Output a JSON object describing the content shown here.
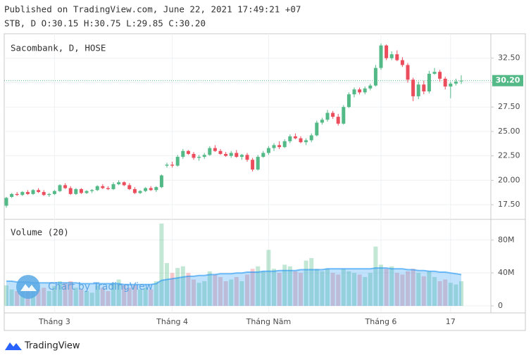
{
  "header": {
    "published": "Published on TradingView.com, June 22, 2021 17:49:21 +07",
    "ohlc_legend": "STB, D O:30.15 H:30.75 L:29.85 C:30.20"
  },
  "footer": {
    "brand": "TradingView"
  },
  "chart_data": {
    "type": "candlestick",
    "title": "Sacombank, D, HOSE",
    "watermark": "Chart by TradingView",
    "up_color": "#53b987",
    "down_color": "#eb4d5c",
    "categories": [
      null,
      null,
      null,
      null,
      null,
      null,
      null,
      null,
      null,
      "Tháng 3",
      null,
      null,
      null,
      null,
      null,
      null,
      null,
      null,
      null,
      null,
      null,
      null,
      null,
      null,
      null,
      null,
      null,
      null,
      null,
      null,
      null,
      "Tháng 4",
      null,
      null,
      null,
      null,
      null,
      null,
      null,
      null,
      null,
      null,
      null,
      null,
      null,
      null,
      null,
      null,
      null,
      "Tháng Năm",
      null,
      null,
      null,
      null,
      null,
      null,
      null,
      null,
      null,
      null,
      null,
      null,
      null,
      null,
      null,
      null,
      null,
      null,
      null,
      null,
      "Tháng 6",
      null,
      null,
      null,
      null,
      null,
      null,
      null,
      null,
      null,
      null,
      null,
      null,
      "17",
      null,
      null
    ],
    "open": [
      17.4,
      18.3,
      18.6,
      18.5,
      18.8,
      18.6,
      19.0,
      18.8,
      18.5,
      18.6,
      18.9,
      19.5,
      19.2,
      18.6,
      19.1,
      18.7,
      18.9,
      19.0,
      19.4,
      19.2,
      19.1,
      19.6,
      19.8,
      19.5,
      19.1,
      18.7,
      18.9,
      19.2,
      19.0,
      19.3,
      21.5,
      21.6,
      21.5,
      22.4,
      23.0,
      22.7,
      22.3,
      22.4,
      22.6,
      23.3,
      23.0,
      22.7,
      22.5,
      22.8,
      22.4,
      22.6,
      22.1,
      21.1,
      22.4,
      22.8,
      23.3,
      23.6,
      23.4,
      24.0,
      24.5,
      24.3,
      23.9,
      24.1,
      24.6,
      25.9,
      26.2,
      26.9,
      26.5,
      25.8,
      27.5,
      28.8,
      29.3,
      29.0,
      29.4,
      29.7,
      31.5,
      33.8,
      32.5,
      32.9,
      32.3,
      31.8,
      30.3,
      28.6,
      29.8,
      29.1,
      30.9,
      31.1,
      30.4,
      29.6,
      29.9,
      30.15
    ],
    "high": [
      18.3,
      18.7,
      18.8,
      18.9,
      19.0,
      19.1,
      19.2,
      19.0,
      18.7,
      19.0,
      19.6,
      19.7,
      19.4,
      19.2,
      19.2,
      19.0,
      19.1,
      19.5,
      19.6,
      19.4,
      19.8,
      20.0,
      19.9,
      19.7,
      19.3,
      19.0,
      19.3,
      19.4,
      19.4,
      20.6,
      21.8,
      21.9,
      22.6,
      23.2,
      23.1,
      22.9,
      22.6,
      22.8,
      23.5,
      23.6,
      23.2,
      22.9,
      23.0,
      23.1,
      22.7,
      22.8,
      22.3,
      22.6,
      23.0,
      23.5,
      23.8,
      24.0,
      24.2,
      24.7,
      24.8,
      24.5,
      24.3,
      24.8,
      26.1,
      26.4,
      27.2,
      27.1,
      26.8,
      27.7,
      29.0,
      29.5,
      29.5,
      29.6,
      29.9,
      31.8,
      34.0,
      33.9,
      33.2,
      33.3,
      32.6,
      32.0,
      30.5,
      30.1,
      30.2,
      31.2,
      31.5,
      31.3,
      30.6,
      30.1,
      30.4,
      30.75
    ],
    "low": [
      17.2,
      18.2,
      18.4,
      18.4,
      18.5,
      18.5,
      18.7,
      18.4,
      18.3,
      18.5,
      18.8,
      19.1,
      18.5,
      18.5,
      18.6,
      18.6,
      18.7,
      18.9,
      19.1,
      19.0,
      19.0,
      19.5,
      19.4,
      19.0,
      18.6,
      18.6,
      18.8,
      18.9,
      18.8,
      19.2,
      21.3,
      21.3,
      21.4,
      22.2,
      22.6,
      22.1,
      22.0,
      22.2,
      22.5,
      22.9,
      22.6,
      22.4,
      22.3,
      22.3,
      22.1,
      21.9,
      20.9,
      21.0,
      22.3,
      22.6,
      23.0,
      23.2,
      23.3,
      23.8,
      24.2,
      23.8,
      23.6,
      23.9,
      24.5,
      25.7,
      26.0,
      26.3,
      25.6,
      25.7,
      27.4,
      28.5,
      28.8,
      28.8,
      29.2,
      29.6,
      31.3,
      32.3,
      32.3,
      32.2,
      31.6,
      30.0,
      28.1,
      28.3,
      28.8,
      28.9,
      30.8,
      30.1,
      29.3,
      28.4,
      29.7,
      29.85
    ],
    "close": [
      18.2,
      18.6,
      18.5,
      18.8,
      18.6,
      19.0,
      18.8,
      18.5,
      18.6,
      18.9,
      19.5,
      19.2,
      18.6,
      19.1,
      18.7,
      18.9,
      19.0,
      19.4,
      19.2,
      19.1,
      19.6,
      19.8,
      19.5,
      19.1,
      18.7,
      18.9,
      19.2,
      19.0,
      19.3,
      20.5,
      21.6,
      21.5,
      22.4,
      23.0,
      22.7,
      22.3,
      22.4,
      22.6,
      23.3,
      23.0,
      22.7,
      22.5,
      22.8,
      22.4,
      22.6,
      22.1,
      21.1,
      22.4,
      22.8,
      23.3,
      23.6,
      23.4,
      24.0,
      24.5,
      24.3,
      23.9,
      24.1,
      24.6,
      25.9,
      26.2,
      26.9,
      26.5,
      25.8,
      27.5,
      28.8,
      29.3,
      29.0,
      29.4,
      29.7,
      31.5,
      33.8,
      32.5,
      32.9,
      32.3,
      31.8,
      30.3,
      28.6,
      29.8,
      29.1,
      30.9,
      31.1,
      30.4,
      29.6,
      29.9,
      30.1,
      30.2
    ],
    "last_price": {
      "value": 30.2,
      "label": "30.20"
    },
    "ylim": [
      16,
      35
    ],
    "yticks": [
      {
        "value": 17.5,
        "label": "17.50"
      },
      {
        "value": 20,
        "label": "20.00"
      },
      {
        "value": 22.5,
        "label": "22.50"
      },
      {
        "value": 25,
        "label": "25.00"
      },
      {
        "value": 27.5,
        "label": "27.50"
      },
      {
        "value": 30,
        "label": "30.00"
      },
      {
        "value": 32.5,
        "label": "32.50"
      }
    ],
    "volume_title": "Volume (20)",
    "volume": [
      25000000,
      20000000,
      18000000,
      22000000,
      20000000,
      25000000,
      20000000,
      22000000,
      18000000,
      24000000,
      30000000,
      28000000,
      30000000,
      22000000,
      20000000,
      18000000,
      16000000,
      25000000,
      22000000,
      18000000,
      28000000,
      32000000,
      25000000,
      22000000,
      25000000,
      20000000,
      22000000,
      20000000,
      30000000,
      100000000,
      52000000,
      40000000,
      46000000,
      48000000,
      40000000,
      32000000,
      28000000,
      30000000,
      42000000,
      38000000,
      35000000,
      30000000,
      32000000,
      35000000,
      30000000,
      38000000,
      45000000,
      48000000,
      42000000,
      68000000,
      45000000,
      40000000,
      50000000,
      48000000,
      42000000,
      40000000,
      55000000,
      58000000,
      45000000,
      42000000,
      45000000,
      40000000,
      38000000,
      45000000,
      42000000,
      40000000,
      38000000,
      35000000,
      40000000,
      72000000,
      50000000,
      45000000,
      48000000,
      40000000,
      38000000,
      42000000,
      45000000,
      40000000,
      36000000,
      42000000,
      35000000,
      30000000,
      32000000,
      28000000,
      26000000,
      30000000
    ],
    "volume_ma": [
      30000000,
      30000000,
      29000000,
      29000000,
      29000000,
      28000000,
      28000000,
      28000000,
      28000000,
      28000000,
      28000000,
      28000000,
      28000000,
      28000000,
      27000000,
      27000000,
      27000000,
      27000000,
      27000000,
      27000000,
      27000000,
      27000000,
      26000000,
      26000000,
      26000000,
      26000000,
      26000000,
      26000000,
      27000000,
      31000000,
      32000000,
      33000000,
      34000000,
      35000000,
      36000000,
      36000000,
      37000000,
      37000000,
      38000000,
      38000000,
      39000000,
      39000000,
      39000000,
      40000000,
      40000000,
      41000000,
      41000000,
      41000000,
      42000000,
      42000000,
      42000000,
      43000000,
      43000000,
      43000000,
      43000000,
      44000000,
      44000000,
      44000000,
      44000000,
      44000000,
      45000000,
      45000000,
      45000000,
      45000000,
      45000000,
      45000000,
      45000000,
      45000000,
      45000000,
      46000000,
      46000000,
      46000000,
      45000000,
      45000000,
      45000000,
      44000000,
      44000000,
      43000000,
      43000000,
      42000000,
      42000000,
      41000000,
      41000000,
      40000000,
      39000000,
      38000000
    ],
    "volume_color": "#2196f3",
    "volume_ylim": [
      -8500000,
      105000000
    ],
    "volume_ticks": [
      {
        "value": 0,
        "label": "0"
      },
      {
        "value": 40000000,
        "label": "40M"
      },
      {
        "value": 80000000,
        "label": "80M"
      }
    ],
    "grid": true
  }
}
